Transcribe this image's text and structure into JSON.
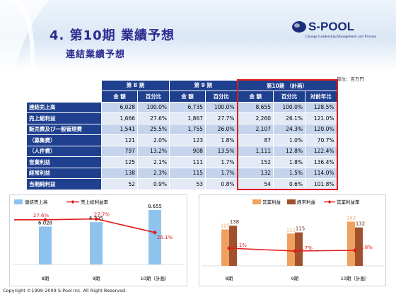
{
  "header": {
    "title": "4. 第10期 業績予想",
    "subtitle": "連結業績予想",
    "logo": "S-POOL",
    "tagline": "Change Leadership,Management and Process"
  },
  "unit_label": "単位：百万円",
  "table": {
    "period_headers": [
      "第 8 期",
      "第 9 期",
      "第10期 （計画）"
    ],
    "sub_headers": [
      "金 額",
      "百分比",
      "金 額",
      "百分比",
      "金 額",
      "百分比",
      "対前年比"
    ],
    "rows": [
      {
        "label": "連結売上高",
        "values": [
          "6,028",
          "100.0%",
          "6,735",
          "100.0%",
          "8,655",
          "100.0%",
          "128.5%"
        ]
      },
      {
        "label": "売上総利益",
        "values": [
          "1,666",
          "27.6%",
          "1,867",
          "27.7%",
          "2,260",
          "26.1%",
          "121.0%"
        ]
      },
      {
        "label": "販売費及び一般管理費",
        "values": [
          "1,541",
          "25.5%",
          "1,755",
          "26.0%",
          "2,107",
          "24.3%",
          "120.0%"
        ]
      },
      {
        "label": "（募集費）",
        "values": [
          "121",
          "2.0%",
          "123",
          "1.8%",
          "87",
          "1.0%",
          "70.7%"
        ]
      },
      {
        "label": "（人件費）",
        "values": [
          "797",
          "13.2%",
          "908",
          "13.5%",
          "1,111",
          "12.8%",
          "122.4%"
        ]
      },
      {
        "label": "営業利益",
        "values": [
          "125",
          "2.1%",
          "111",
          "1.7%",
          "152",
          "1.8%",
          "136.4%"
        ]
      },
      {
        "label": "経常利益",
        "values": [
          "138",
          "2.3%",
          "115",
          "1.7%",
          "132",
          "1.5%",
          "114.0%"
        ]
      },
      {
        "label": "当期純利益",
        "values": [
          "52",
          "0.9%",
          "53",
          "0.8%",
          "54",
          "0.6%",
          "101.8%"
        ]
      }
    ]
  },
  "chart_data": [
    {
      "type": "bar",
      "categories": [
        "8期",
        "9期",
        "10期（計画）"
      ],
      "series": [
        {
          "name": "連結売上高",
          "type": "bar",
          "values": [
            6028,
            6735,
            8655
          ],
          "labels": [
            "6.028",
            "6.735",
            "8.655"
          ],
          "color": "#8ec3ee"
        },
        {
          "name": "売上総利益率",
          "type": "line",
          "values": [
            27.6,
            27.7,
            26.1
          ],
          "labels": [
            "27.6%",
            "27.7%",
            "26.1%"
          ],
          "color": "#e01b1b"
        }
      ]
    },
    {
      "type": "bar",
      "categories": [
        "8期",
        "9期",
        "10期（計画）"
      ],
      "series": [
        {
          "name": "営業利益",
          "type": "bar",
          "values": [
            125,
            111,
            152
          ],
          "labels": [
            "125",
            "111",
            "152"
          ],
          "color": "#f0a160"
        },
        {
          "name": "経常利益",
          "type": "bar",
          "values": [
            138,
            115,
            132
          ],
          "labels": [
            "138",
            "115",
            "132"
          ],
          "color": "#a0522d"
        },
        {
          "name": "営業利益率",
          "type": "line",
          "values": [
            2.1,
            1.7,
            1.8
          ],
          "labels": [
            "2.1%",
            "1.7%",
            "1.8%"
          ],
          "color": "#e01b1b"
        }
      ]
    }
  ],
  "footer": "Copyright ©1999-2009 S-Pool Inc. All Right Reserved."
}
